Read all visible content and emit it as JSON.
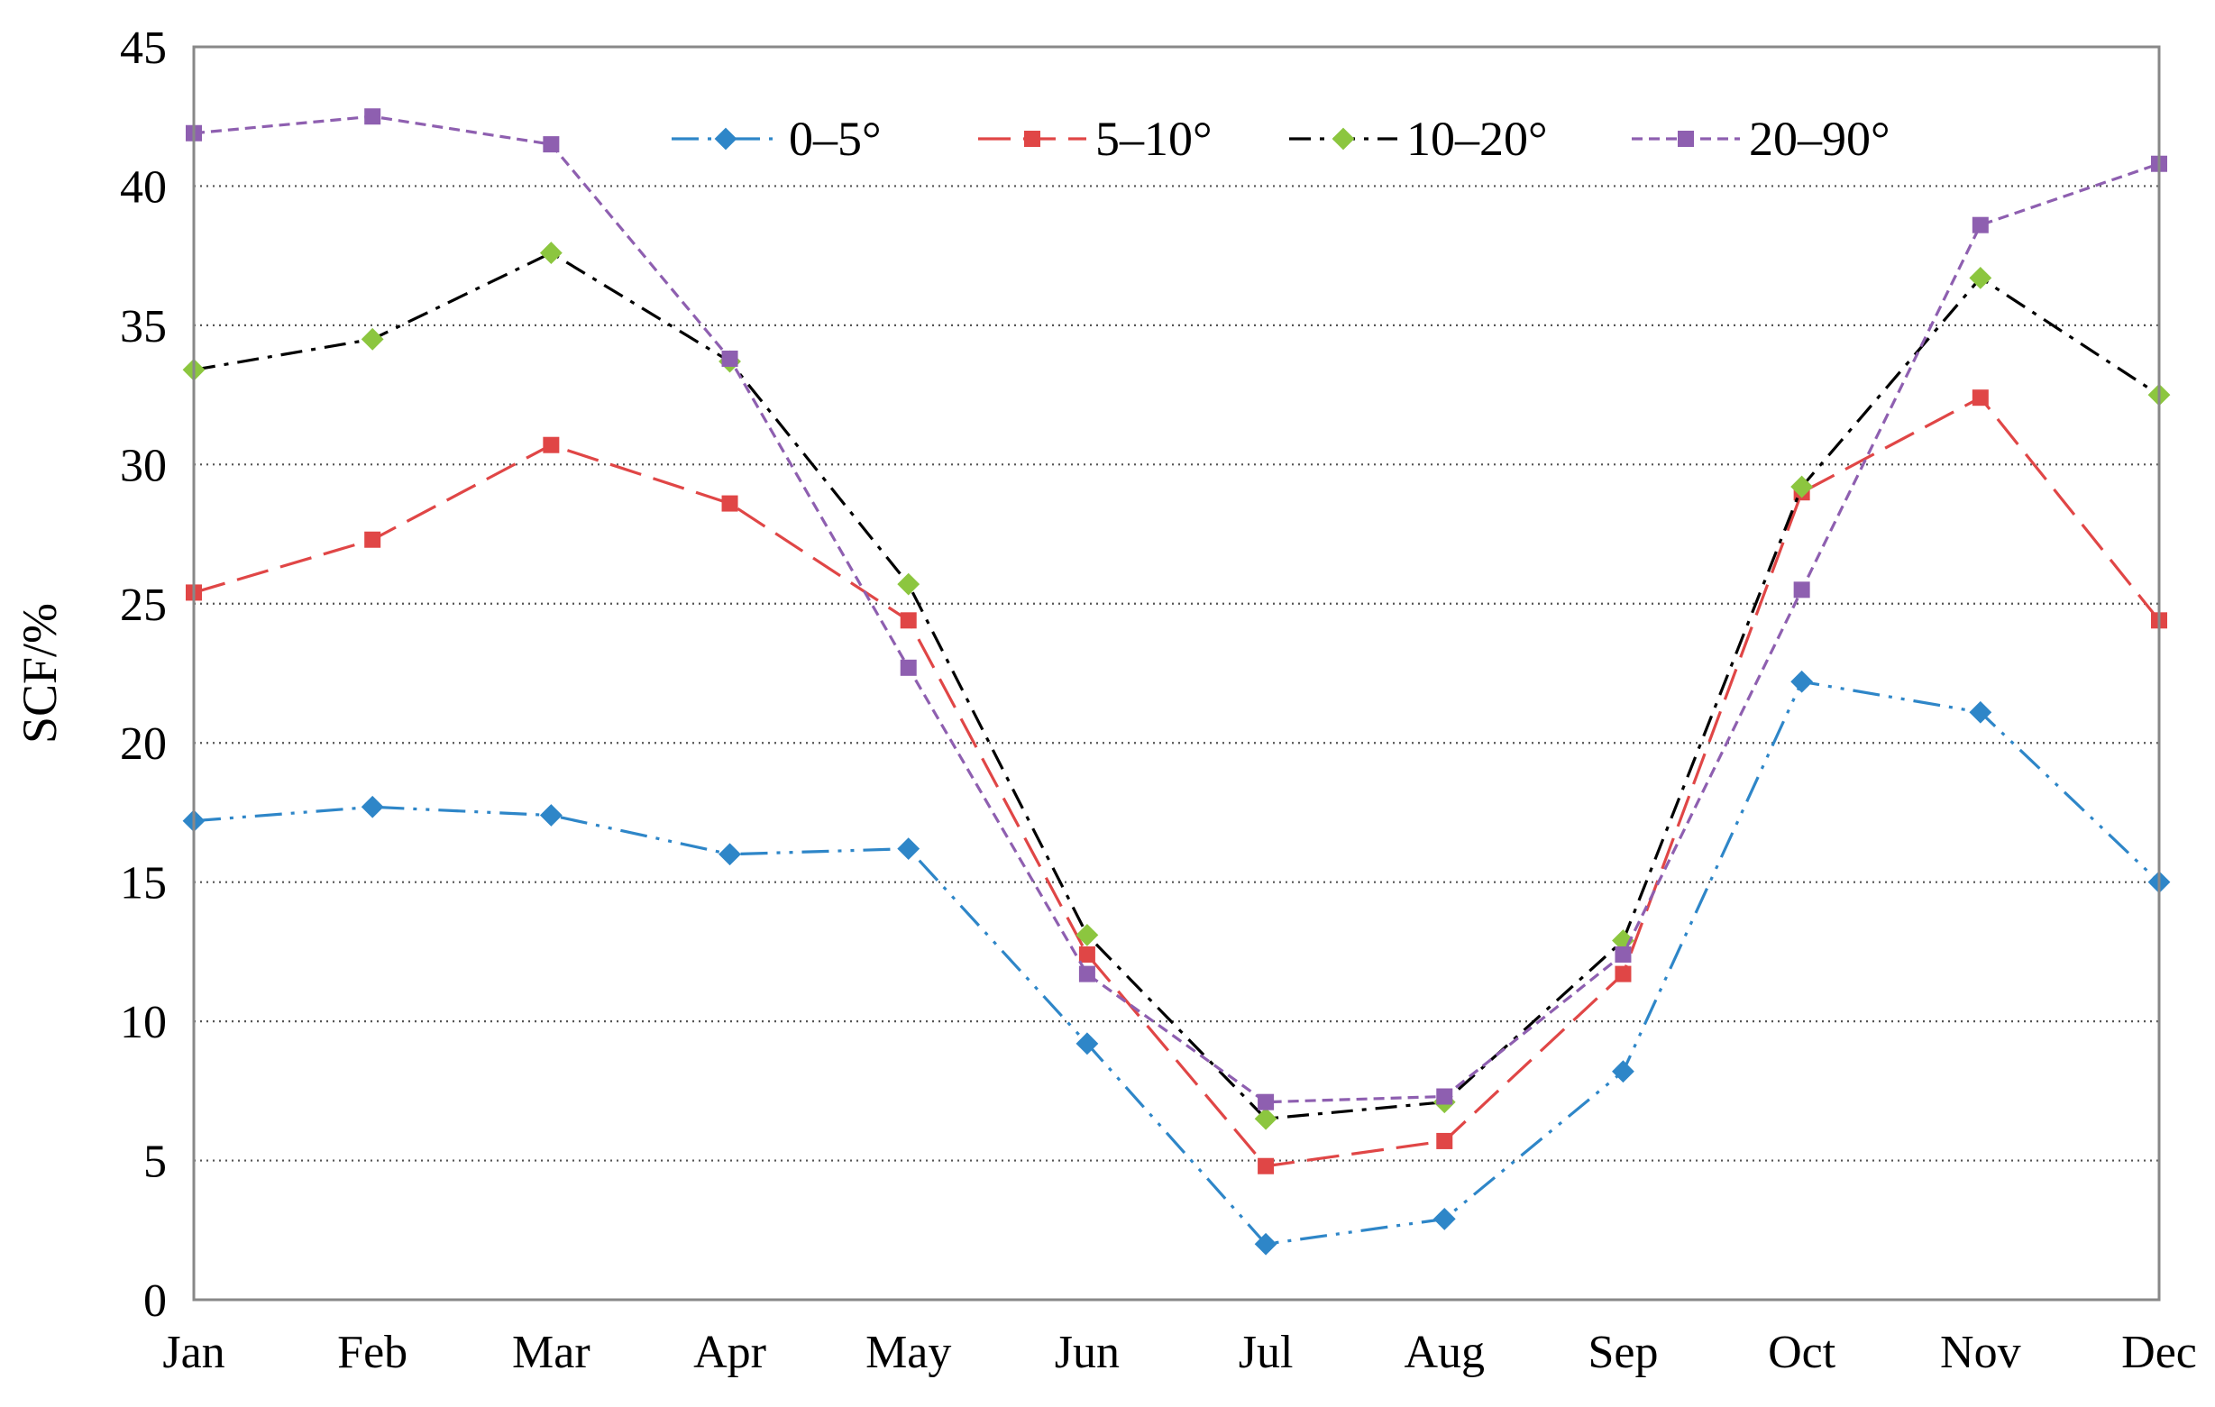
{
  "chart_data": {
    "type": "line",
    "title": "",
    "xlabel": "",
    "ylabel": "SCF/%",
    "ylim": [
      0,
      45
    ],
    "yticks": [
      0,
      5,
      10,
      15,
      20,
      25,
      30,
      35,
      40,
      45
    ],
    "grid": "horizontal-dotted",
    "legend_position": "top-center",
    "categories": [
      "Jan",
      "Feb",
      "Mar",
      "Apr",
      "May",
      "Jun",
      "Jul",
      "Aug",
      "Sep",
      "Oct",
      "Nov",
      "Dec"
    ],
    "series": [
      {
        "name": "0–5°",
        "color": "#2E86C8",
        "marker": "diamond",
        "dash": "dash-dot-dot",
        "values": [
          17.2,
          17.7,
          17.4,
          16.0,
          16.2,
          9.2,
          2.0,
          2.9,
          8.2,
          22.2,
          21.1,
          15.0
        ]
      },
      {
        "name": "5–10°",
        "color": "#E04646",
        "marker": "square",
        "dash": "long-dash",
        "values": [
          25.4,
          27.3,
          30.7,
          28.6,
          24.4,
          12.4,
          4.8,
          5.7,
          11.7,
          29.0,
          32.4,
          24.4
        ]
      },
      {
        "name": "10–20°",
        "color": "#8CC63F",
        "line_color": "#000000",
        "marker": "diamond",
        "dash": "dash-dot",
        "values": [
          33.4,
          34.5,
          37.6,
          33.7,
          25.7,
          13.1,
          6.5,
          7.1,
          12.9,
          29.2,
          36.7,
          32.5
        ]
      },
      {
        "name": "20–90°",
        "color": "#8E5FB0",
        "marker": "square",
        "dash": "short-dash",
        "values": [
          41.9,
          42.5,
          41.5,
          33.8,
          22.7,
          11.7,
          7.1,
          7.3,
          12.4,
          25.5,
          38.6,
          40.8
        ]
      }
    ]
  }
}
